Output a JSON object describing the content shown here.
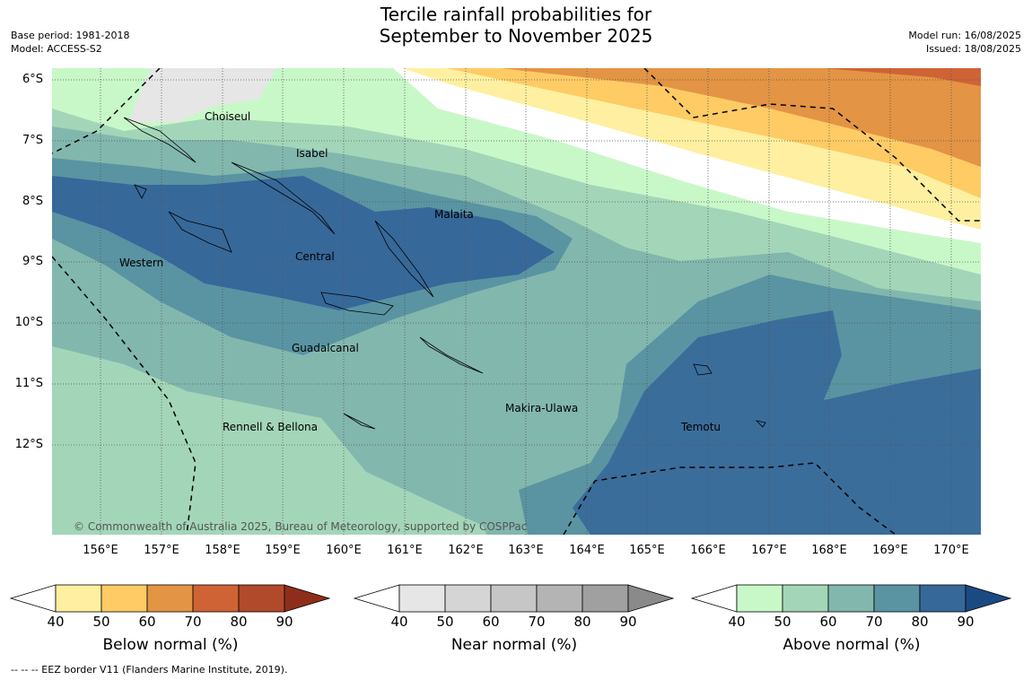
{
  "title_line1": "Tercile rainfall probabilities for",
  "title_line2": "September to November 2025",
  "meta_left": {
    "base_period": "Base period: 1981-2018",
    "model": "Model: ACCESS-S2"
  },
  "meta_right": {
    "model_run": "Model run: 16/08/2025",
    "issued": "Issued: 18/08/2025"
  },
  "latitudes": [
    "6°S",
    "7°S",
    "8°S",
    "9°S",
    "10°S",
    "11°S",
    "12°S"
  ],
  "longitudes": [
    "156°E",
    "157°E",
    "158°E",
    "159°E",
    "160°E",
    "161°E",
    "162°E",
    "163°E",
    "164°E",
    "165°E",
    "166°E",
    "167°E",
    "168°E",
    "169°E",
    "170°E"
  ],
  "provinces": [
    "Choiseul",
    "Isabel",
    "Malaita",
    "Western",
    "Central",
    "Guadalcanal",
    "Rennell & Bellona",
    "Makira-Ulawa",
    "Temotu"
  ],
  "copyright": "© Commonwealth of Australia 2025, Bureau of Meteorology, supported by COSPPac",
  "colorbars": [
    {
      "title": "Below normal (%)",
      "ticks": [
        "40",
        "50",
        "60",
        "70",
        "80",
        "90"
      ],
      "colors": [
        "#ffffff",
        "#fef0a0",
        "#fecb65",
        "#e39444",
        "#cf6335",
        "#b04a2a",
        "#8e2e1a"
      ]
    },
    {
      "title": "Near normal (%)",
      "ticks": [
        "40",
        "50",
        "60",
        "70",
        "80",
        "90"
      ],
      "colors": [
        "#ffffff",
        "#e6e6e6",
        "#d5d5d5",
        "#c6c6c6",
        "#b4b4b4",
        "#a0a0a0",
        "#8a8a8a"
      ]
    },
    {
      "title": "Above normal (%)",
      "ticks": [
        "40",
        "50",
        "60",
        "70",
        "80",
        "90"
      ],
      "colors": [
        "#ffffff",
        "#c9f8c8",
        "#a3d6b8",
        "#82b7ae",
        "#5a94a2",
        "#37689a",
        "#1b4a83"
      ]
    }
  ],
  "footnote": "--  --  -- EEZ border V11 (Flanders Marine Institute, 2019)."
}
